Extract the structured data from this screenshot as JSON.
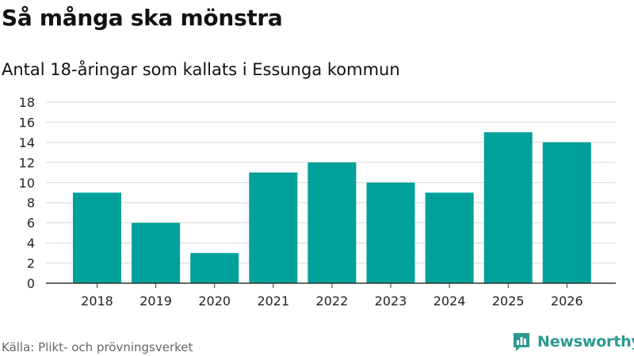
{
  "header": {
    "title": "Så många ska mönstra",
    "subtitle": "Antal 18-åringar som kallats i Essunga kommun"
  },
  "footer": {
    "source": "Källa: Plikt- och prövningsverket",
    "brand": "Newsworthy",
    "brand_icon": "newsworthy-logo-icon"
  },
  "colors": {
    "bar": "#00a19a",
    "grid": "#dddddd",
    "axis": "#333333",
    "brand": "#2b9a93"
  },
  "chart_data": {
    "type": "bar",
    "title": "Så många ska mönstra",
    "subtitle": "Antal 18-åringar som kallats i Essunga kommun",
    "xlabel": "",
    "ylabel": "",
    "categories": [
      "2018",
      "2019",
      "2020",
      "2021",
      "2022",
      "2023",
      "2024",
      "2025",
      "2026"
    ],
    "values": [
      9,
      6,
      3,
      11,
      12,
      10,
      9,
      15,
      14
    ],
    "ylim": [
      0,
      18
    ],
    "yticks": [
      0,
      2,
      4,
      6,
      8,
      10,
      12,
      14,
      16,
      18
    ],
    "grid": true,
    "legend": "none"
  }
}
